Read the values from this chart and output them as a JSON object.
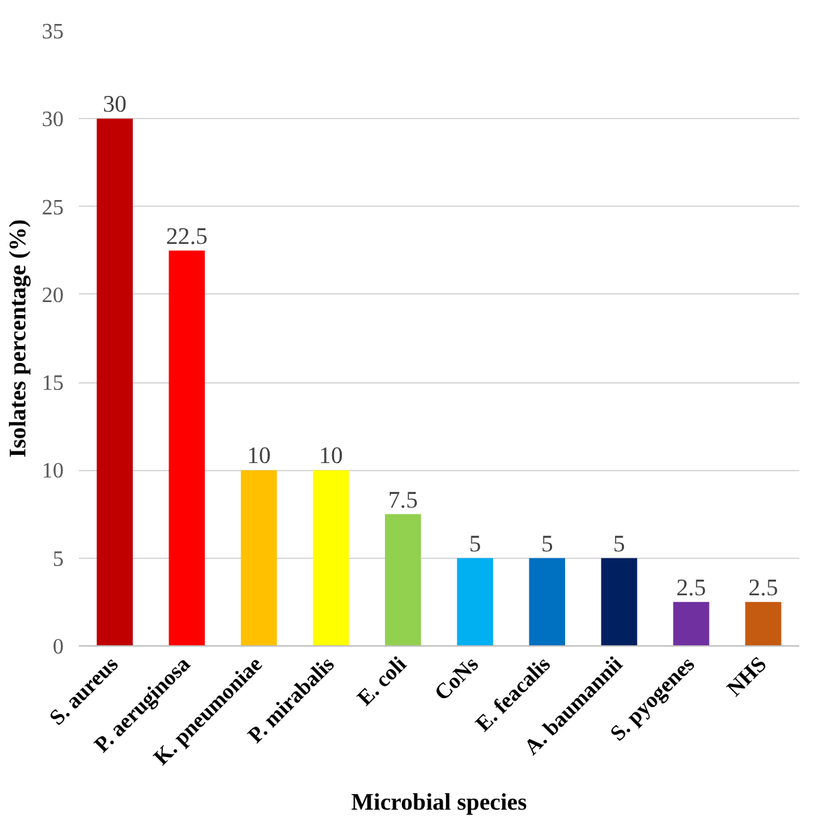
{
  "chart_data": {
    "type": "bar",
    "xlabel": "Microbial species",
    "ylabel": "Isolates percentage (%)",
    "categories": [
      "S. aureus",
      "P. aeruginosa",
      "K. pneumoniae",
      "P. mirabalis",
      "E. coli",
      "CoNs",
      "E. feacalis",
      "A. baumannii",
      "S. pyogenes",
      "NHS"
    ],
    "values": [
      30,
      22.5,
      10,
      10,
      7.5,
      5,
      5,
      5,
      2.5,
      2.5
    ],
    "colors": [
      "#c00000",
      "#ff0000",
      "#ffc000",
      "#ffff00",
      "#92d050",
      "#00b0f0",
      "#0070c0",
      "#002060",
      "#7030a0",
      "#c55a11"
    ],
    "ylim": [
      0,
      35
    ],
    "yticks": [
      0,
      5,
      10,
      15,
      20,
      25,
      30,
      35
    ],
    "grid": "y",
    "data_labels": true
  }
}
